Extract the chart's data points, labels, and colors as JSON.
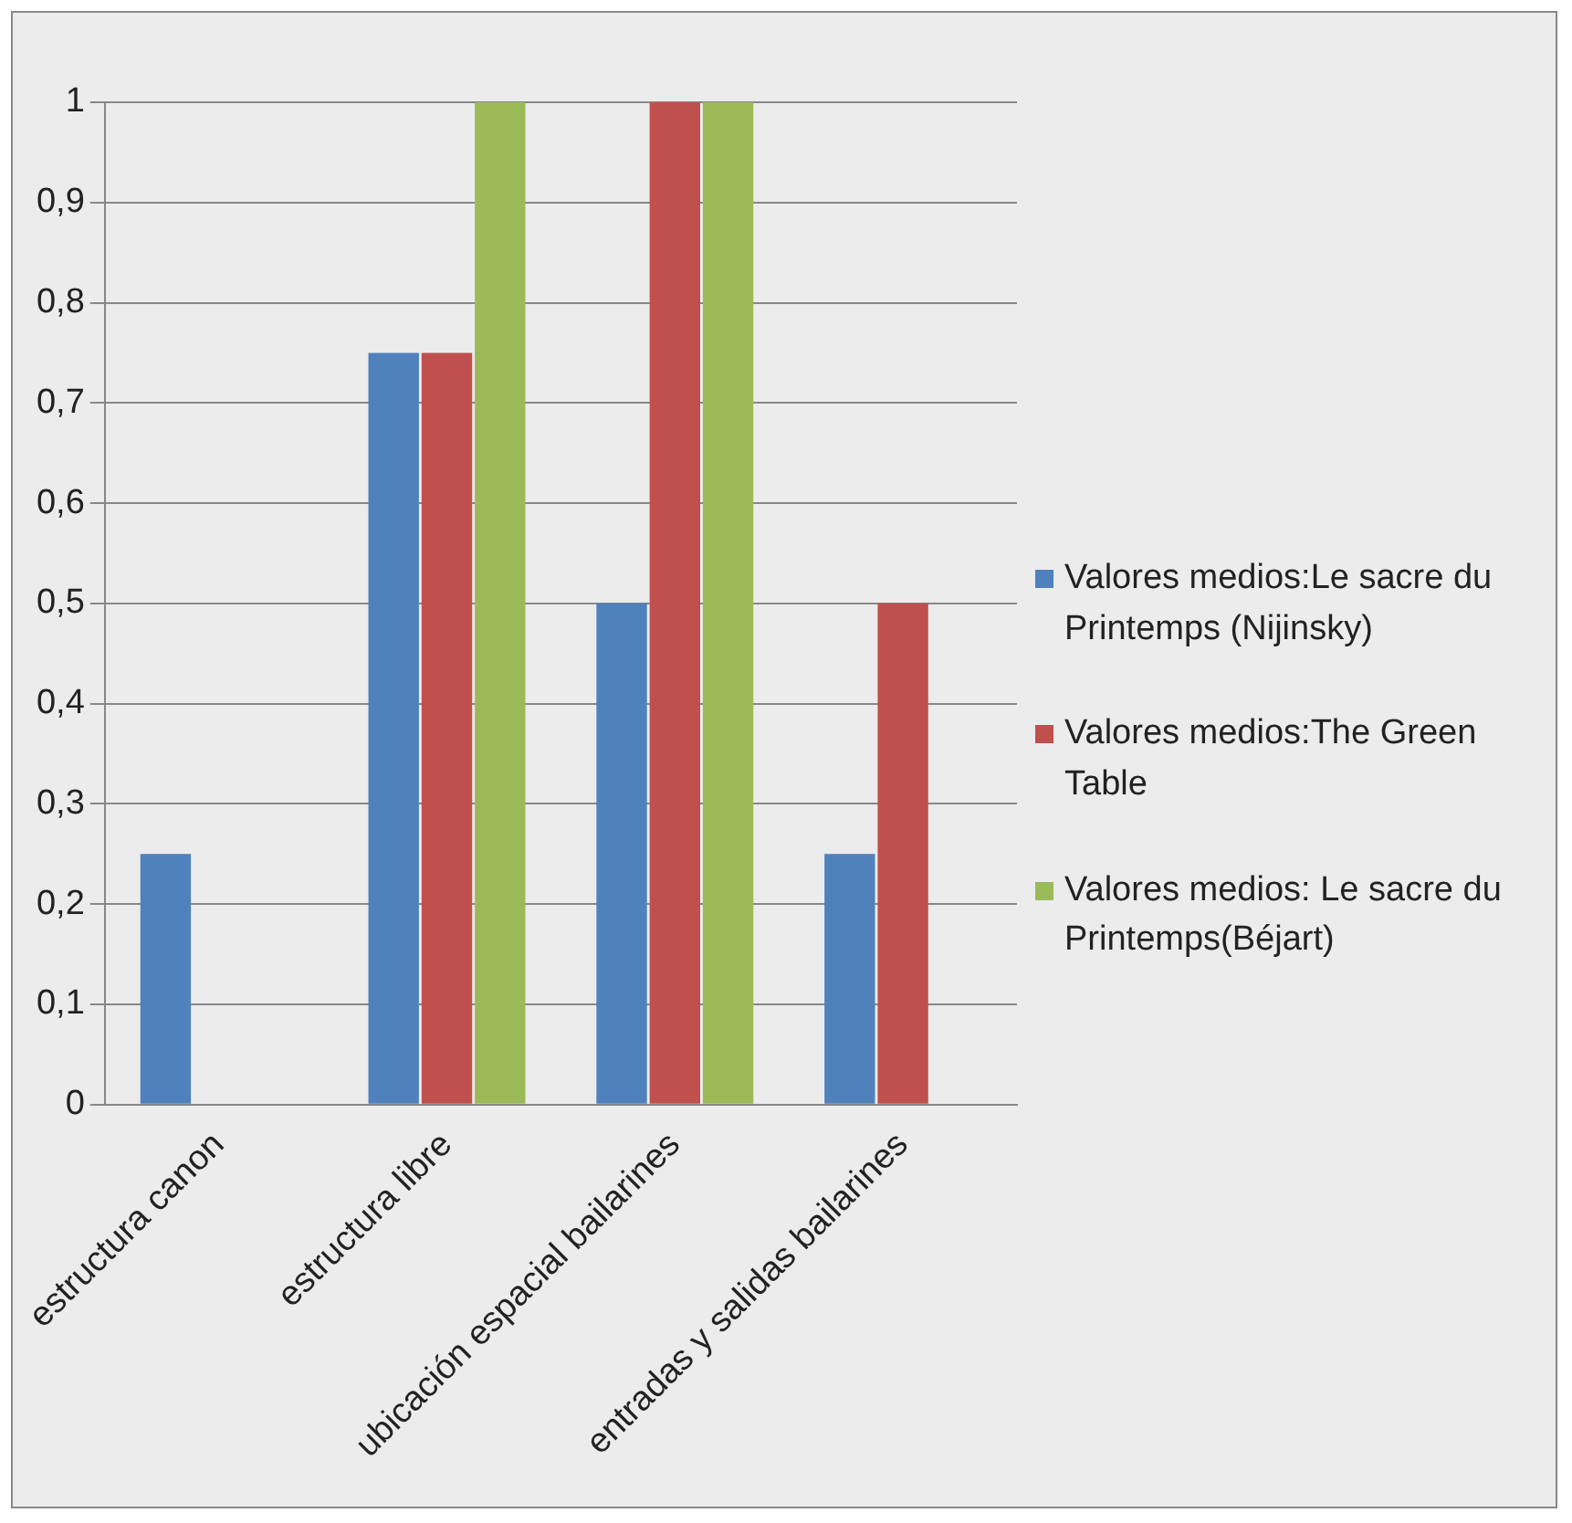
{
  "chart_data": {
    "type": "bar",
    "categories": [
      "estructura canon",
      "estructura libre",
      "ubicación espacial bailarines",
      "entradas y salidas bailarines"
    ],
    "series": [
      {
        "name": "Valores medios:Le sacre du Printemps (Nijinsky)",
        "color": "#4f81bd",
        "values": [
          0.25,
          0.75,
          0.5,
          0.25
        ]
      },
      {
        "name": "Valores medios:The Green Table",
        "color": "#c0504d",
        "values": [
          0,
          0.75,
          1,
          0.5
        ]
      },
      {
        "name": "Valores medios: Le sacre du Printemps(Béjart)",
        "color": "#9bbb59",
        "values": [
          0,
          1,
          1,
          0
        ]
      }
    ],
    "ylim": [
      0,
      1
    ],
    "yticks": [
      0,
      {
        "value": 0.1,
        "label": "0,1"
      },
      {
        "value": 0.2,
        "label": "0,2"
      },
      {
        "value": 0.3,
        "label": "0,3"
      },
      {
        "value": 0.4,
        "label": "0,4"
      },
      {
        "value": 0.5,
        "label": "0,5"
      },
      {
        "value": 0.6,
        "label": "0,6"
      },
      {
        "value": 0.7,
        "label": "0,7"
      },
      {
        "value": 0.8,
        "label": "0,8"
      },
      {
        "value": 0.9,
        "label": "0,9"
      },
      1
    ],
    "grid": "y",
    "legend": "right"
  }
}
